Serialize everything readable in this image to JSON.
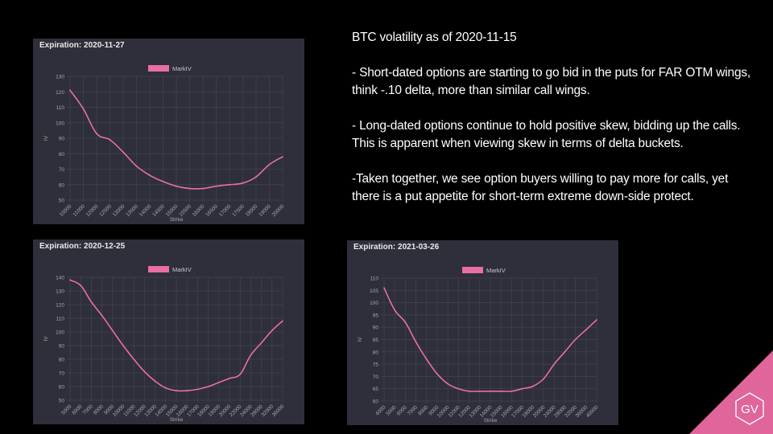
{
  "slide": {
    "title": "BTC volatility as of 2020-11-15",
    "bullets": [
      "- Short-dated options are starting to go bid in the puts for FAR OTM wings, think -.10 delta, more than similar call wings.",
      "- Long-dated options continue to hold positive skew, bidding up the calls. This is apparent when viewing skew in terms of delta buckets.",
      "-Taken together, we see option buyers willing to pay more for calls, yet there is a put appetite for short-term extreme down-side protect."
    ],
    "logo_text": "GV",
    "accent_color": "#e0659a"
  },
  "chart_data": [
    {
      "type": "line",
      "title": "Expiration: 2020-11-27",
      "xlabel": "Strike",
      "ylabel": "IV",
      "ylim": [
        50,
        130
      ],
      "yticks": [
        50,
        60,
        70,
        80,
        90,
        100,
        110,
        120,
        130
      ],
      "categories": [
        "10000",
        "11000",
        "12000",
        "12500",
        "13000",
        "13500",
        "14000",
        "14500",
        "15000",
        "15500",
        "16000",
        "16500",
        "17000",
        "17500",
        "18000",
        "19000",
        "20000"
      ],
      "grid": true,
      "legend": "top",
      "series": [
        {
          "name": "MarkIV",
          "color": "#e96ea6",
          "values": [
            121,
            109,
            93,
            89,
            81,
            72,
            66,
            62,
            59,
            57.5,
            57.5,
            59,
            60,
            61,
            65,
            73,
            78
          ]
        }
      ]
    },
    {
      "type": "line",
      "title": "Expiration: 2020-12-25",
      "xlabel": "Strike",
      "ylabel": "IV",
      "ylim": [
        50,
        140
      ],
      "yticks": [
        50,
        60,
        70,
        80,
        90,
        100,
        110,
        120,
        130,
        140
      ],
      "categories": [
        "5000",
        "6000",
        "7000",
        "8000",
        "9000",
        "10000",
        "11000",
        "12000",
        "13000",
        "14000",
        "15000",
        "16000",
        "17000",
        "18000",
        "19000",
        "20000",
        "22000",
        "24000",
        "28000",
        "32000",
        "36000"
      ],
      "grid": true,
      "legend": "top",
      "series": [
        {
          "name": "MarkIV",
          "color": "#e96ea6",
          "values": [
            138,
            134,
            122,
            112,
            101,
            90,
            80,
            71,
            64,
            59,
            57,
            57,
            58,
            60,
            63,
            66,
            69,
            83,
            92,
            101,
            108
          ]
        }
      ]
    },
    {
      "type": "line",
      "title": "Expiration: 2021-03-26",
      "xlabel": "Strike",
      "ylabel": "IV",
      "ylim": [
        60,
        110
      ],
      "yticks": [
        60,
        65,
        70,
        75,
        80,
        85,
        90,
        95,
        100,
        105,
        110
      ],
      "categories": [
        "4000",
        "5000",
        "6000",
        "7000",
        "8000",
        "9000",
        "10000",
        "11000",
        "12000",
        "13000",
        "14000",
        "15000",
        "16000",
        "17000",
        "18000",
        "20000",
        "24000",
        "28000",
        "32000",
        "36000",
        "40000"
      ],
      "grid": true,
      "legend": "top",
      "series": [
        {
          "name": "MarkIV",
          "color": "#e96ea6",
          "values": [
            106,
            97,
            92,
            84,
            77,
            71,
            67,
            65,
            64,
            64,
            64,
            64,
            64,
            65,
            66,
            69,
            75,
            80,
            85,
            89,
            93
          ]
        }
      ]
    }
  ]
}
